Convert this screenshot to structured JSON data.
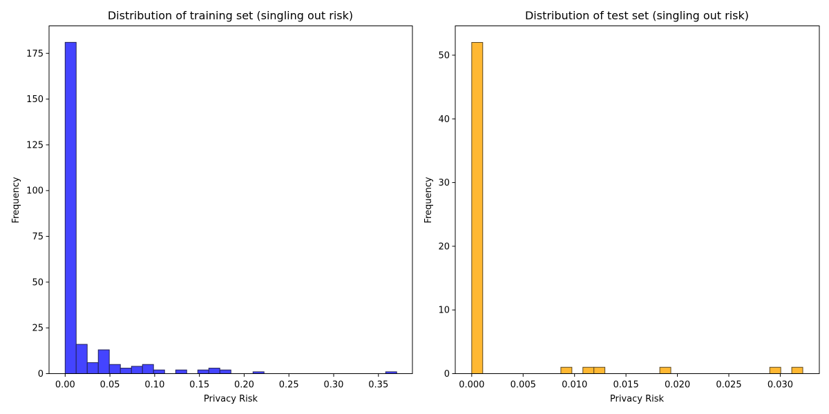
{
  "chart_data": [
    {
      "type": "bar",
      "title": "Distribution of training set (singling out risk)",
      "xlabel": "Privacy Risk",
      "ylabel": "Frequency",
      "xlim": [
        -0.018,
        0.388
      ],
      "ylim": [
        0,
        190
      ],
      "bin_width": 0.0123,
      "color": "#4444ff",
      "edge_color": "#222255",
      "xticks": [
        0.0,
        0.05,
        0.1,
        0.15,
        0.2,
        0.25,
        0.3,
        0.35
      ],
      "xtick_labels": [
        "0.00",
        "0.05",
        "0.10",
        "0.15",
        "0.20",
        "0.25",
        "0.30",
        "0.35"
      ],
      "yticks": [
        0,
        25,
        50,
        75,
        100,
        125,
        150,
        175
      ],
      "ytick_labels": [
        "0",
        "25",
        "50",
        "75",
        "100",
        "125",
        "150",
        "175"
      ],
      "bins": [
        {
          "x": 0.0,
          "count": 181
        },
        {
          "x": 0.0123,
          "count": 16
        },
        {
          "x": 0.0247,
          "count": 6
        },
        {
          "x": 0.037,
          "count": 13
        },
        {
          "x": 0.0494,
          "count": 5
        },
        {
          "x": 0.0617,
          "count": 3
        },
        {
          "x": 0.0741,
          "count": 4
        },
        {
          "x": 0.0864,
          "count": 5
        },
        {
          "x": 0.0988,
          "count": 2
        },
        {
          "x": 0.1235,
          "count": 2
        },
        {
          "x": 0.1482,
          "count": 2
        },
        {
          "x": 0.1605,
          "count": 3
        },
        {
          "x": 0.1729,
          "count": 2
        },
        {
          "x": 0.2099,
          "count": 1
        },
        {
          "x": 0.3581,
          "count": 1
        }
      ]
    },
    {
      "type": "bar",
      "title": "Distribution of test set (singling out risk)",
      "xlabel": "Privacy Risk",
      "ylabel": "Frequency",
      "xlim": [
        -0.0016,
        0.0338
      ],
      "ylim": [
        0,
        54.6
      ],
      "bin_width": 0.00107,
      "color": "#ffb833",
      "edge_color": "#5a4620",
      "xticks": [
        0.0,
        0.005,
        0.01,
        0.015,
        0.02,
        0.025,
        0.03
      ],
      "xtick_labels": [
        "0.000",
        "0.005",
        "0.010",
        "0.015",
        "0.020",
        "0.025",
        "0.030"
      ],
      "yticks": [
        0,
        10,
        20,
        30,
        40,
        50
      ],
      "ytick_labels": [
        "0",
        "10",
        "20",
        "30",
        "40",
        "50"
      ],
      "bins": [
        {
          "x": 0.0,
          "count": 52
        },
        {
          "x": 0.00867,
          "count": 1
        },
        {
          "x": 0.01081,
          "count": 1
        },
        {
          "x": 0.01188,
          "count": 1
        },
        {
          "x": 0.01829,
          "count": 1
        },
        {
          "x": 0.02898,
          "count": 1
        },
        {
          "x": 0.03112,
          "count": 1
        }
      ]
    }
  ]
}
